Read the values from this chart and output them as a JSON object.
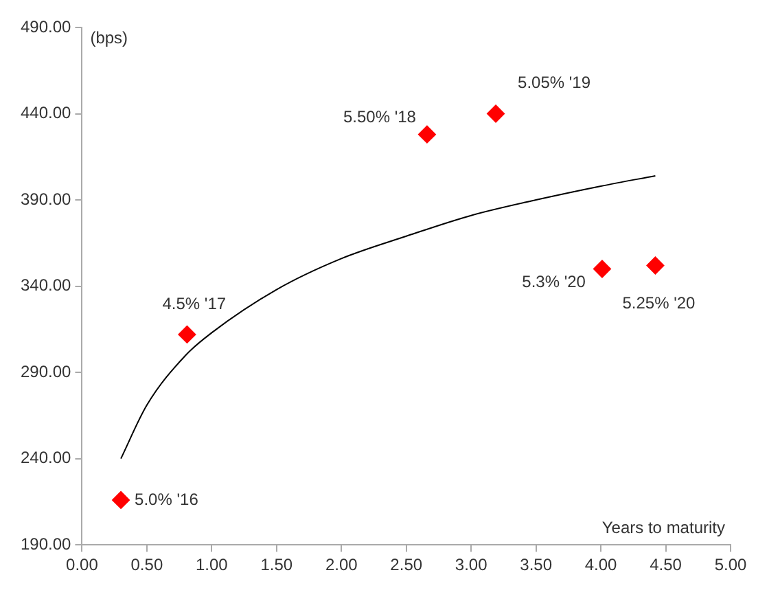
{
  "chart_data": {
    "type": "scatter",
    "xlabel": "Years to maturity",
    "ylabel": "(bps)",
    "xlim": [
      0,
      5
    ],
    "ylim": [
      190,
      490
    ],
    "xticks": [
      {
        "value": 0,
        "label": "0.00"
      },
      {
        "value": 0.5,
        "label": "0.50"
      },
      {
        "value": 1,
        "label": "1.00"
      },
      {
        "value": 1.5,
        "label": "1.50"
      },
      {
        "value": 2,
        "label": "2.00"
      },
      {
        "value": 2.5,
        "label": "2.50"
      },
      {
        "value": 3,
        "label": "3.00"
      },
      {
        "value": 3.5,
        "label": "3.50"
      },
      {
        "value": 4,
        "label": "4.00"
      },
      {
        "value": 4.5,
        "label": "4.50"
      },
      {
        "value": 5,
        "label": "5.00"
      }
    ],
    "yticks": [
      {
        "value": 190,
        "label": "190.00"
      },
      {
        "value": 240,
        "label": "240.00"
      },
      {
        "value": 290,
        "label": "290.00"
      },
      {
        "value": 340,
        "label": "340.00"
      },
      {
        "value": 390,
        "label": "390.00"
      },
      {
        "value": 440,
        "label": "440.00"
      },
      {
        "value": 490,
        "label": "490.00"
      }
    ],
    "grid": false,
    "legend": false,
    "series": [
      {
        "type": "scatter",
        "color": "#ff0000",
        "marker": "diamond",
        "x": [
          0.3,
          0.81,
          2.66,
          3.19,
          4.01,
          4.42
        ],
        "values": [
          216,
          312,
          428,
          440,
          350,
          352
        ]
      },
      {
        "type": "line",
        "color": "#000000",
        "marker": "none",
        "line_style": "solid",
        "x": [
          0.3,
          0.5,
          0.8,
          1,
          1.5,
          2,
          2.5,
          3,
          3.5,
          4,
          4.42
        ],
        "values": [
          240,
          271,
          300,
          313,
          338,
          356,
          369,
          381,
          390,
          398,
          404
        ]
      }
    ],
    "annotations": [
      {
        "text": "5.0% '16",
        "x": 0.3,
        "y": 216
      },
      {
        "text": "4.5% '17",
        "x": 0.81,
        "y": 312
      },
      {
        "text": "5.50% '18",
        "x": 2.66,
        "y": 428
      },
      {
        "text": "5.05% '19",
        "x": 3.19,
        "y": 440
      },
      {
        "text": "5.3% '20",
        "x": 4.01,
        "y": 350
      },
      {
        "text": "5.25% '20",
        "x": 4.42,
        "y": 352
      }
    ]
  }
}
